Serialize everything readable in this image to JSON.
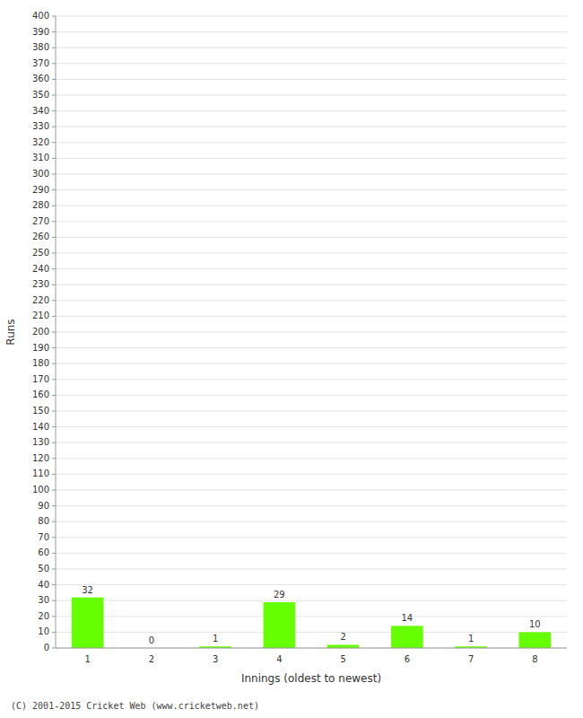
{
  "chart_data": {
    "type": "bar",
    "categories": [
      "1",
      "2",
      "3",
      "4",
      "5",
      "6",
      "7",
      "8"
    ],
    "values": [
      32,
      0,
      1,
      29,
      2,
      14,
      1,
      10
    ],
    "color": "#66ff00",
    "xlabel": "Innings (oldest to newest)",
    "ylabel": "Runs",
    "ylim": [
      0,
      400
    ],
    "yticks": [
      0,
      10,
      20,
      30,
      40,
      50,
      60,
      70,
      80,
      90,
      100,
      110,
      120,
      130,
      140,
      150,
      160,
      170,
      180,
      190,
      200,
      210,
      220,
      230,
      240,
      250,
      260,
      270,
      280,
      290,
      300,
      310,
      320,
      330,
      340,
      350,
      360,
      370,
      380,
      390,
      400
    ],
    "grid": true,
    "data_labels": true,
    "annotations": [
      "(C) 2001-2015 Cricket Web (www.cricketweb.net)"
    ]
  }
}
